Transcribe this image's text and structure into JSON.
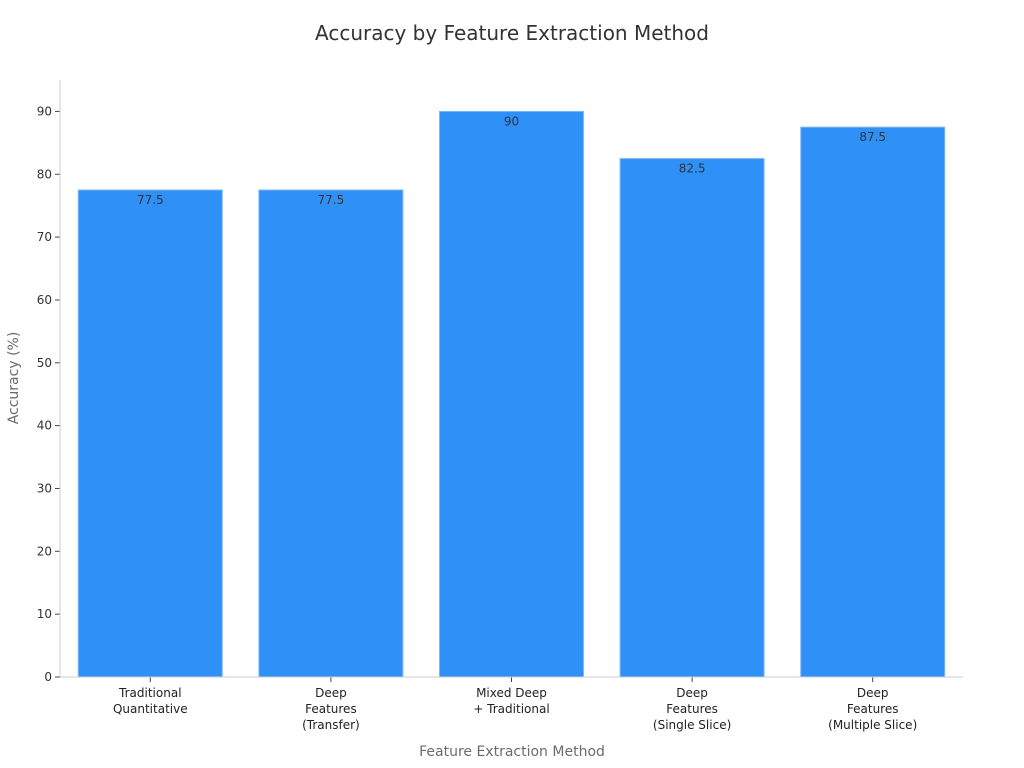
{
  "chart_data": {
    "type": "bar",
    "title": "Accuracy by Feature Extraction Method",
    "xlabel": "Feature Extraction Method",
    "ylabel": "Accuracy (%)",
    "categories": [
      [
        "Traditional",
        "Quantitative"
      ],
      [
        "Deep",
        "Features",
        "(Transfer)"
      ],
      [
        "Mixed Deep",
        "+ Traditional"
      ],
      [
        "Deep",
        "Features",
        "(Single Slice)"
      ],
      [
        "Deep",
        "Features",
        "(Multiple Slice)"
      ]
    ],
    "values": [
      77.5,
      77.5,
      90,
      82.5,
      87.5
    ],
    "value_labels": [
      "77.5",
      "77.5",
      "90",
      "82.5",
      "87.5"
    ],
    "ylim": [
      0,
      95
    ],
    "yticks": [
      0,
      10,
      20,
      30,
      40,
      50,
      60,
      70,
      80,
      90
    ],
    "grid": false,
    "legend": "none",
    "colors": {
      "bar": "#2f91f7",
      "bar_edge": "#7fb8f5"
    }
  }
}
